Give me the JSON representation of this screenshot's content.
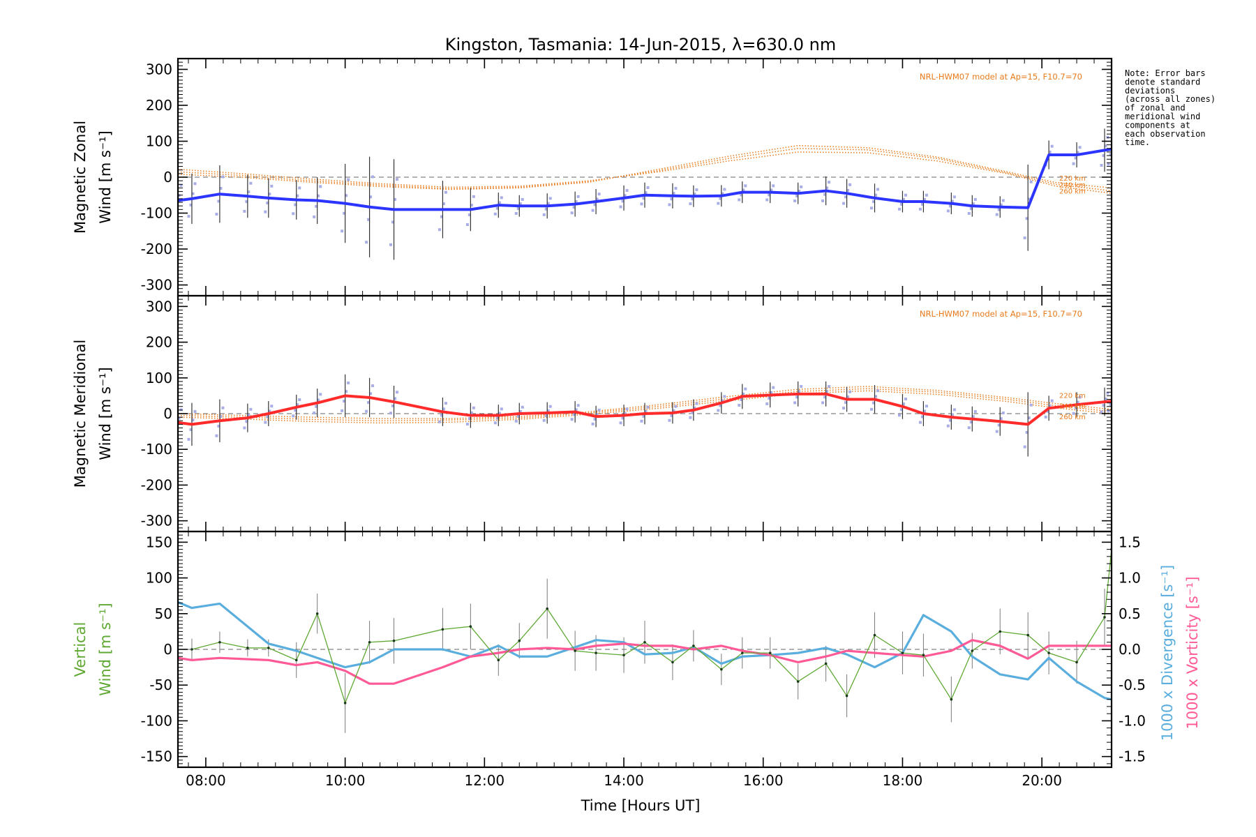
{
  "title": "Kingston, Tasmania: 14-Jun-2015, λ=630.0 nm",
  "note_lines": [
    "Note: Error bars",
    "denote standard",
    "deviations",
    "(across all zones)",
    "of zonal and",
    "meridional wind",
    "components at",
    "each observation",
    "time."
  ],
  "colors": {
    "zonal": "#2b35ff",
    "meridional": "#ff2a2a",
    "vertical": "#5ea832",
    "divergence": "#5aaede",
    "vorticity": "#ff5a96",
    "model": "#e87a1a",
    "errorbar": "#333333",
    "scatter": "#a9aee6",
    "zero": "#666666"
  },
  "chart_data": [
    {
      "type": "line",
      "ylabel": [
        "Magnetic Zonal",
        "Wind [m s⁻¹]"
      ],
      "ylim": [
        -330,
        330
      ],
      "yticks": [
        300,
        200,
        100,
        0,
        -100,
        -200,
        -300
      ],
      "xlim": [
        7.6,
        21.0
      ],
      "model_label": "NRL-HWM07 model at Ap=15, F10.7=70",
      "model_altitudes": [
        "220 km",
        "240 km",
        "260 km"
      ],
      "model": {
        "x": [
          7.6,
          8.5,
          9.5,
          10.5,
          11.5,
          12.5,
          13.5,
          14.5,
          15.5,
          16.5,
          17.5,
          18.5,
          19.5,
          20.2,
          21.0
        ],
        "altitudes": [
          {
            "y": [
              22,
              10,
              -5,
              -18,
              -28,
              -25,
              -10,
              15,
              45,
              70,
              68,
              45,
              10,
              -25,
              -45
            ]
          },
          {
            "y": [
              15,
              5,
              -10,
              -22,
              -32,
              -28,
              -12,
              18,
              52,
              80,
              76,
              52,
              12,
              -20,
              -38
            ]
          },
          {
            "y": [
              8,
              0,
              -14,
              -26,
              -34,
              -30,
              -14,
              22,
              58,
              88,
              82,
              56,
              15,
              -15,
              -30
            ]
          }
        ]
      },
      "series": [
        {
          "name": "Magnetic Zonal Wind",
          "x": [
            7.6,
            7.8,
            8.2,
            8.6,
            8.9,
            9.3,
            9.6,
            10.0,
            10.35,
            10.7,
            11.4,
            11.8,
            12.2,
            12.5,
            12.9,
            13.3,
            13.6,
            14.0,
            14.3,
            14.7,
            15.0,
            15.4,
            15.7,
            16.1,
            16.5,
            16.9,
            17.2,
            17.6,
            18.0,
            18.3,
            18.7,
            19.0,
            19.4,
            19.8,
            20.1,
            20.5,
            20.9,
            21.0
          ],
          "y": [
            -65,
            -60,
            -47,
            -53,
            -58,
            -63,
            -65,
            -73,
            -83,
            -90,
            -90,
            -90,
            -78,
            -80,
            -80,
            -75,
            -68,
            -58,
            -50,
            -52,
            -53,
            -52,
            -42,
            -42,
            -45,
            -38,
            -45,
            -58,
            -68,
            -68,
            -73,
            -80,
            -83,
            -85,
            62,
            62,
            75,
            78
          ],
          "err": [
            70,
            70,
            80,
            60,
            55,
            55,
            65,
            110,
            140,
            140,
            80,
            60,
            35,
            30,
            35,
            35,
            35,
            35,
            35,
            35,
            30,
            30,
            30,
            30,
            30,
            40,
            40,
            40,
            30,
            30,
            30,
            30,
            30,
            120,
            40,
            35,
            60,
            60
          ]
        }
      ]
    },
    {
      "type": "line",
      "ylabel": [
        "Magnetic Meridional",
        "Wind [m s⁻¹]"
      ],
      "ylim": [
        -330,
        330
      ],
      "yticks": [
        300,
        200,
        100,
        0,
        -100,
        -200,
        -300
      ],
      "xlim": [
        7.6,
        21.0
      ],
      "model_label": "NRL-HWM07 model at Ap=15, F10.7=70",
      "model_altitudes": [
        "220 km",
        "240 km",
        "260 km"
      ],
      "model": {
        "x": [
          7.6,
          8.5,
          9.5,
          10.5,
          11.5,
          12.5,
          13.5,
          14.5,
          15.5,
          16.5,
          17.5,
          18.5,
          19.5,
          20.2,
          21.0
        ],
        "altitudes": [
          {
            "y": [
              0,
              -5,
              -10,
              -14,
              -14,
              -8,
              5,
              25,
              48,
              68,
              76,
              65,
              45,
              28,
              12
            ]
          },
          {
            "y": [
              -5,
              -10,
              -16,
              -20,
              -18,
              -12,
              2,
              20,
              42,
              62,
              70,
              60,
              40,
              22,
              6
            ]
          },
          {
            "y": [
              -10,
              -15,
              -22,
              -26,
              -24,
              -16,
              -2,
              15,
              36,
              56,
              64,
              54,
              34,
              16,
              0
            ]
          }
        ]
      },
      "series": [
        {
          "name": "Magnetic Meridional Wind",
          "x": [
            7.6,
            7.8,
            8.2,
            8.6,
            8.9,
            9.3,
            9.6,
            10.0,
            10.35,
            10.7,
            11.4,
            11.8,
            12.2,
            12.5,
            12.9,
            13.3,
            13.6,
            14.0,
            14.3,
            14.7,
            15.0,
            15.4,
            15.7,
            16.1,
            16.5,
            16.9,
            17.2,
            17.6,
            18.0,
            18.3,
            18.7,
            19.0,
            19.4,
            19.8,
            20.1,
            20.5,
            20.9,
            21.0
          ],
          "y": [
            -25,
            -30,
            -20,
            -12,
            0,
            18,
            30,
            50,
            45,
            33,
            5,
            -5,
            -5,
            0,
            2,
            5,
            -8,
            -5,
            0,
            2,
            10,
            30,
            48,
            52,
            55,
            55,
            40,
            40,
            20,
            0,
            -10,
            -15,
            -22,
            -30,
            15,
            25,
            33,
            35
          ],
          "err": [
            60,
            60,
            60,
            40,
            35,
            35,
            40,
            60,
            55,
            45,
            40,
            35,
            30,
            30,
            30,
            30,
            30,
            30,
            30,
            30,
            30,
            30,
            35,
            35,
            35,
            35,
            35,
            40,
            35,
            35,
            35,
            35,
            40,
            90,
            35,
            35,
            40,
            40
          ]
        }
      ]
    },
    {
      "type": "line",
      "ylabel": [
        "Vertical",
        "Wind [m s⁻¹]"
      ],
      "ylim": [
        -165,
        165
      ],
      "yticks": [
        150,
        100,
        50,
        0,
        -50,
        -100,
        -150
      ],
      "xlim": [
        7.6,
        21.0
      ],
      "xlabel": "Time [Hours UT]",
      "xticks": [
        8,
        10,
        12,
        14,
        16,
        18,
        20
      ],
      "xtick_labels": [
        "08:00",
        "10:00",
        "12:00",
        "14:00",
        "16:00",
        "18:00",
        "20:00"
      ],
      "y2label_divergence": "1000 x Divergence [s⁻¹]",
      "y2label_vorticity": "1000 x Vorticity [s⁻¹]",
      "y2lim": [
        -1.65,
        1.65
      ],
      "y2ticks": [
        1.5,
        1.0,
        0.5,
        0.0,
        -0.5,
        -1.0,
        -1.5
      ],
      "y2tick_labels": [
        "1.5",
        "1.0",
        "0.5",
        "0.0",
        "-0.5",
        "-1.0",
        "-1.5"
      ],
      "vertical": {
        "name": "Vertical Wind",
        "x": [
          7.8,
          8.2,
          8.6,
          8.9,
          9.3,
          9.6,
          10.0,
          10.35,
          10.7,
          11.4,
          11.8,
          12.2,
          12.5,
          12.9,
          13.3,
          13.6,
          14.0,
          14.3,
          14.7,
          15.0,
          15.4,
          15.7,
          16.1,
          16.5,
          16.9,
          17.2,
          17.6,
          18.0,
          18.3,
          18.7,
          19.0,
          19.4,
          19.8,
          20.1,
          20.5,
          20.9,
          21.0
        ],
        "y": [
          0,
          10,
          2,
          2,
          -15,
          50,
          -75,
          10,
          12,
          28,
          32,
          -15,
          12,
          57,
          -2,
          -5,
          -8,
          10,
          -18,
          5,
          -28,
          -5,
          -5,
          -45,
          -20,
          -65,
          20,
          -5,
          -8,
          -70,
          -2,
          25,
          20,
          -5,
          -18,
          45,
          140
        ],
        "err": [
          15,
          15,
          12,
          12,
          25,
          28,
          42,
          30,
          32,
          30,
          32,
          22,
          25,
          42,
          28,
          25,
          25,
          30,
          25,
          22,
          22,
          22,
          22,
          25,
          25,
          30,
          32,
          30,
          30,
          32,
          25,
          32,
          32,
          30,
          30,
          40,
          50
        ]
      },
      "divergence": {
        "name": "1000 x Divergence",
        "x": [
          7.6,
          7.8,
          8.2,
          8.9,
          9.3,
          9.6,
          10.0,
          10.35,
          10.7,
          11.4,
          11.8,
          12.2,
          12.5,
          12.9,
          13.3,
          13.6,
          14.0,
          14.3,
          14.7,
          15.0,
          15.4,
          15.7,
          16.1,
          16.5,
          16.9,
          17.2,
          17.6,
          18.0,
          18.3,
          18.7,
          19.0,
          19.4,
          19.8,
          20.1,
          20.5,
          20.9,
          21.0
        ],
        "y": [
          0.66,
          0.58,
          0.64,
          0.08,
          -0.02,
          -0.12,
          -0.25,
          -0.18,
          0.0,
          0.0,
          -0.1,
          0.05,
          -0.1,
          -0.1,
          0.03,
          0.13,
          0.1,
          -0.07,
          -0.05,
          0.03,
          -0.2,
          -0.1,
          -0.08,
          -0.05,
          0.02,
          -0.07,
          -0.25,
          -0.05,
          0.48,
          0.25,
          -0.1,
          -0.35,
          -0.42,
          -0.12,
          -0.45,
          -0.68,
          -0.7
        ]
      },
      "vorticity": {
        "name": "1000 x Vorticity",
        "x": [
          7.6,
          7.8,
          8.2,
          8.9,
          9.3,
          9.6,
          10.0,
          10.35,
          10.7,
          11.4,
          11.8,
          12.2,
          12.5,
          12.9,
          13.3,
          13.6,
          14.0,
          14.3,
          14.7,
          15.0,
          15.4,
          15.7,
          16.1,
          16.5,
          16.9,
          17.2,
          17.6,
          18.0,
          18.3,
          18.7,
          19.0,
          19.4,
          19.8,
          20.1,
          20.5,
          20.9,
          21.0
        ],
        "y": [
          -0.12,
          -0.15,
          -0.12,
          -0.15,
          -0.22,
          -0.18,
          -0.3,
          -0.48,
          -0.48,
          -0.25,
          -0.1,
          -0.05,
          0.0,
          0.02,
          0.0,
          0.05,
          0.08,
          0.05,
          0.05,
          0.0,
          0.05,
          -0.02,
          -0.08,
          -0.18,
          -0.1,
          -0.02,
          -0.05,
          -0.08,
          -0.1,
          -0.02,
          0.13,
          0.05,
          -0.13,
          0.05,
          0.05,
          0.05,
          0.05
        ]
      }
    }
  ]
}
